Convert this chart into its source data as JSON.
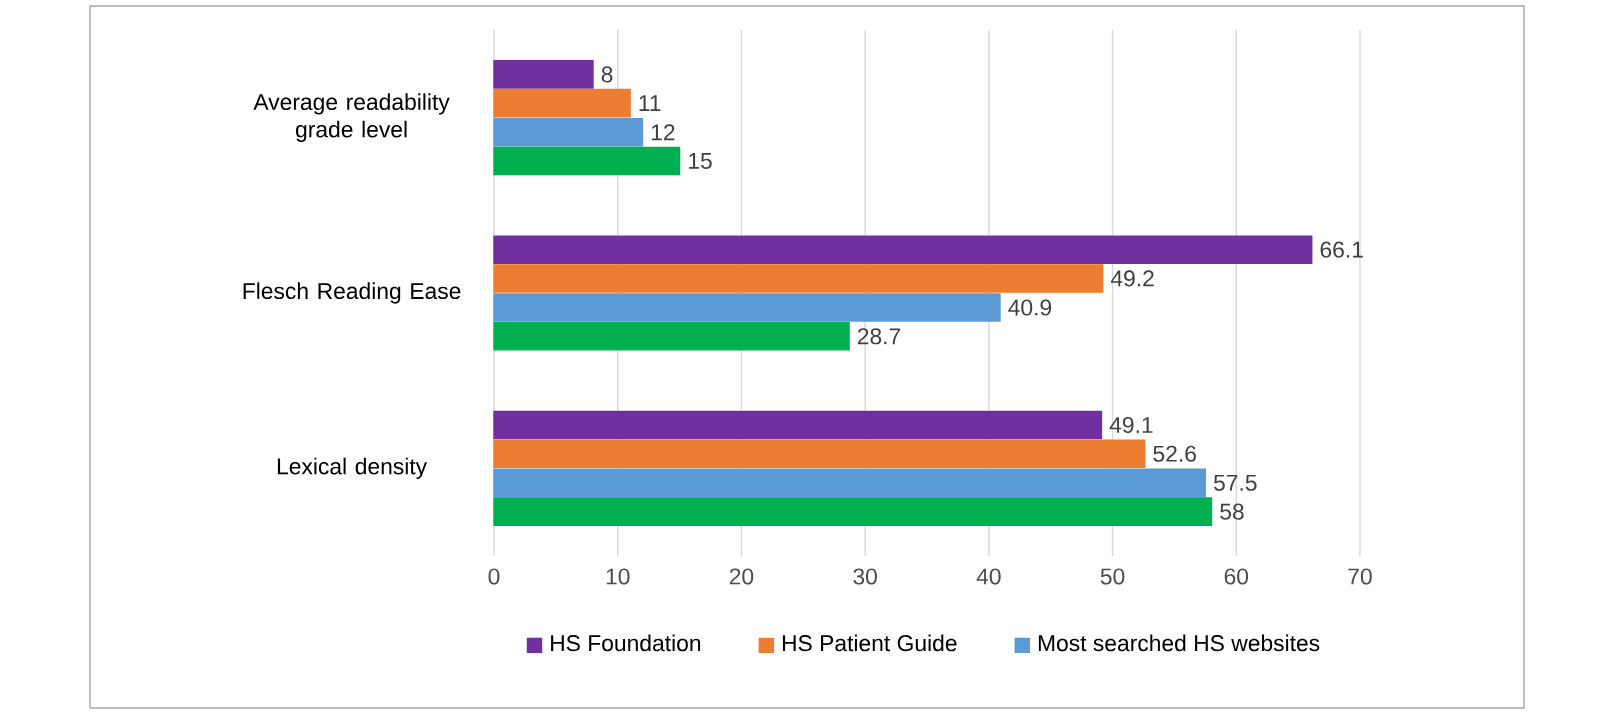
{
  "chart_data": {
    "type": "bar",
    "orientation": "horizontal",
    "categories": [
      "Average readability grade level",
      "Flesch Reading Ease",
      "Lexical density"
    ],
    "series": [
      {
        "name": "HS Foundation",
        "color": "#7030a0",
        "values": [
          8,
          66.1,
          49.1
        ]
      },
      {
        "name": "HS Patient Guide",
        "color": "#ed7d31",
        "values": [
          11,
          49.2,
          52.6
        ]
      },
      {
        "name": "Most searched HS websites",
        "color": "#5b9bd5",
        "values": [
          12,
          40.9,
          57.5
        ]
      },
      {
        "color": "#00b050",
        "values": [
          15,
          28.7,
          58
        ]
      }
    ],
    "xlim": [
      0,
      70
    ],
    "xticks": [
      0,
      10,
      20,
      30,
      40,
      50,
      60,
      70
    ],
    "grid": "x",
    "legend": "bottom",
    "data_labels": true
  }
}
